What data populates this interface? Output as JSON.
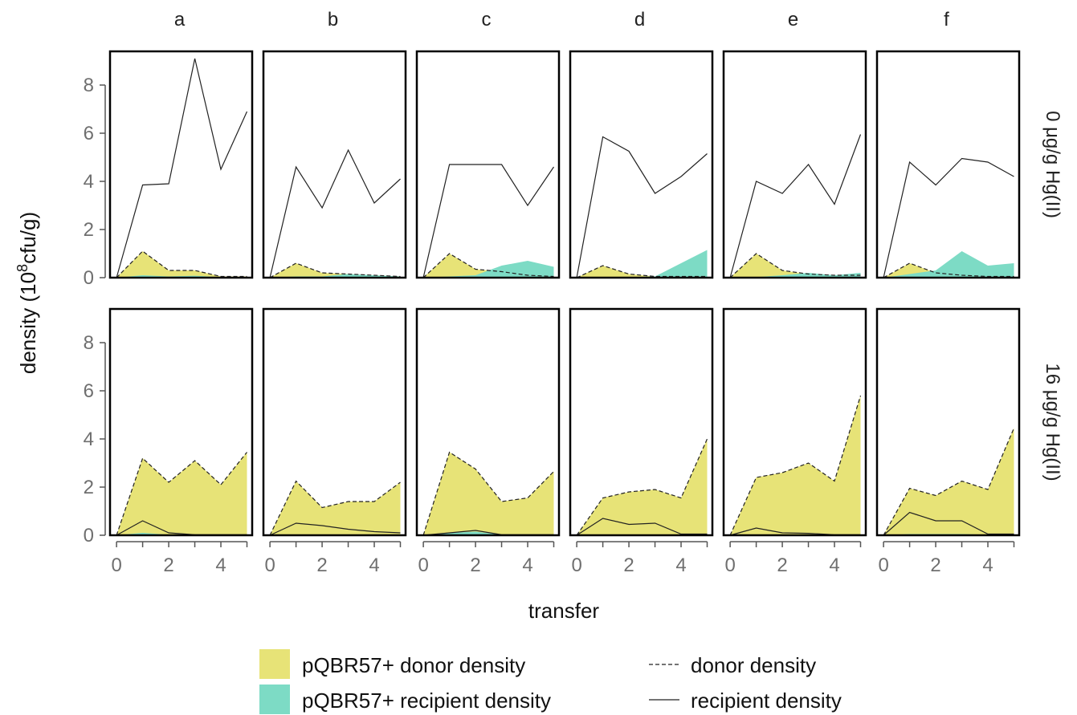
{
  "chart_data": {
    "type": "area",
    "xlabel": "transfer",
    "ylabel_prefix": "density (10",
    "ylabel_sup": "8",
    "ylabel_suffix": "cfu/g)",
    "x": [
      0,
      1,
      2,
      3,
      4,
      5
    ],
    "xticks": [
      0,
      2,
      4
    ],
    "yticks": [
      0,
      2,
      4,
      6,
      8
    ],
    "xlim": [
      -0.25,
      5.2
    ],
    "ylim": [
      0,
      9.4
    ],
    "columns": [
      "a",
      "b",
      "c",
      "d",
      "e",
      "f"
    ],
    "rows": [
      "0 μg/g Hg(II)",
      "16 μg/g Hg(II)"
    ],
    "colors": {
      "donor_fill": "#e7e377",
      "recipient_fill": "#7ddbc5",
      "lines": "#222222"
    },
    "legend": {
      "donor_fill": "pQBR57+ donor density",
      "recipient_fill": "pQBR57+ recipient density",
      "donor_line": "donor density",
      "recipient_line": "recipient density"
    },
    "panels": [
      [
        {
          "donor": [
            0,
            1.1,
            0.3,
            0.3,
            0.05,
            0.05
          ],
          "recipient": [
            0,
            3.85,
            3.9,
            9.1,
            4.5,
            6.9
          ],
          "pdonor": [
            0,
            1.1,
            0.3,
            0.3,
            0.05,
            0.05
          ],
          "precip": [
            0,
            0.1,
            0.05,
            0.08,
            0.02,
            0.02
          ]
        },
        {
          "donor": [
            0,
            0.6,
            0.2,
            0.15,
            0.1,
            0.05
          ],
          "recipient": [
            0,
            4.6,
            2.9,
            5.3,
            3.1,
            4.1
          ],
          "pdonor": [
            0,
            0.6,
            0.2,
            0.15,
            0.1,
            0.05
          ],
          "precip": [
            0,
            0.05,
            0.05,
            0.15,
            0.1,
            0.05
          ]
        },
        {
          "donor": [
            0,
            1.0,
            0.35,
            0.25,
            0.1,
            0.05
          ],
          "recipient": [
            0,
            4.7,
            4.7,
            4.7,
            3.0,
            4.6
          ],
          "pdonor": [
            0,
            1.0,
            0.35,
            0.25,
            0.1,
            0.05
          ],
          "precip": [
            0,
            0.05,
            0.1,
            0.5,
            0.7,
            0.45
          ]
        },
        {
          "donor": [
            0,
            0.5,
            0.15,
            0.05,
            0.05,
            0.05
          ],
          "recipient": [
            0,
            5.85,
            5.25,
            3.5,
            4.2,
            5.15
          ],
          "pdonor": [
            0,
            0.5,
            0.15,
            0.05,
            0.05,
            0.05
          ],
          "precip": [
            0,
            0.02,
            0.02,
            0.05,
            0.6,
            1.15
          ]
        },
        {
          "donor": [
            0,
            1.0,
            0.3,
            0.15,
            0.1,
            0.1
          ],
          "recipient": [
            0,
            4.0,
            3.5,
            4.7,
            3.05,
            5.95
          ],
          "pdonor": [
            0,
            1.0,
            0.3,
            0.15,
            0.1,
            0.1
          ],
          "precip": [
            0,
            0.02,
            0.1,
            0.2,
            0.1,
            0.2
          ]
        },
        {
          "donor": [
            0,
            0.6,
            0.2,
            0.1,
            0.05,
            0.05
          ],
          "recipient": [
            0,
            4.8,
            3.85,
            4.95,
            4.8,
            4.2
          ],
          "pdonor": [
            0,
            0.6,
            0.2,
            0.1,
            0.05,
            0.05
          ],
          "precip": [
            0,
            0.15,
            0.3,
            1.1,
            0.5,
            0.6
          ]
        }
      ],
      [
        {
          "donor": [
            0,
            3.2,
            2.2,
            3.1,
            2.1,
            3.45
          ],
          "recipient": [
            0,
            0.6,
            0.1,
            0.02,
            0.02,
            0.02
          ],
          "pdonor": [
            0,
            3.2,
            2.2,
            3.1,
            2.1,
            3.45
          ],
          "precip": [
            0,
            0.1,
            0.02,
            0.02,
            0.02,
            0.02
          ]
        },
        {
          "donor": [
            0,
            2.25,
            1.15,
            1.4,
            1.4,
            2.2
          ],
          "recipient": [
            0,
            0.5,
            0.4,
            0.25,
            0.15,
            0.1
          ],
          "pdonor": [
            0,
            2.25,
            1.15,
            1.4,
            1.4,
            2.2
          ],
          "precip": [
            0,
            0.02,
            0.02,
            0.02,
            0.02,
            0.02
          ]
        },
        {
          "donor": [
            0,
            3.45,
            2.75,
            1.4,
            1.55,
            2.65
          ],
          "recipient": [
            0,
            0.1,
            0.2,
            0.02,
            0.02,
            0.02
          ],
          "pdonor": [
            0,
            3.45,
            2.75,
            1.4,
            1.55,
            2.65
          ],
          "precip": [
            0,
            0.1,
            0.15,
            0.02,
            0.02,
            0.02
          ]
        },
        {
          "donor": [
            0,
            1.55,
            1.8,
            1.9,
            1.55,
            4.0
          ],
          "recipient": [
            0,
            0.7,
            0.45,
            0.5,
            0.05,
            0.05
          ],
          "pdonor": [
            0,
            1.55,
            1.8,
            1.9,
            1.55,
            4.0
          ],
          "precip": [
            0,
            0.02,
            0.02,
            0.02,
            0.02,
            0.02
          ]
        },
        {
          "donor": [
            0,
            2.4,
            2.6,
            3.0,
            2.25,
            5.8
          ],
          "recipient": [
            0,
            0.3,
            0.1,
            0.08,
            0.02,
            0.02
          ],
          "pdonor": [
            0,
            2.4,
            2.6,
            3.0,
            2.25,
            5.8
          ],
          "precip": [
            0,
            0.02,
            0.02,
            0.02,
            0.02,
            0.02
          ]
        },
        {
          "donor": [
            0,
            1.95,
            1.65,
            2.25,
            1.9,
            4.45
          ],
          "recipient": [
            0,
            0.95,
            0.6,
            0.6,
            0.05,
            0.05
          ],
          "pdonor": [
            0,
            1.95,
            1.65,
            2.25,
            1.9,
            4.45
          ],
          "precip": [
            0,
            0.05,
            0.05,
            0.05,
            0.02,
            0.02
          ]
        }
      ]
    ]
  }
}
